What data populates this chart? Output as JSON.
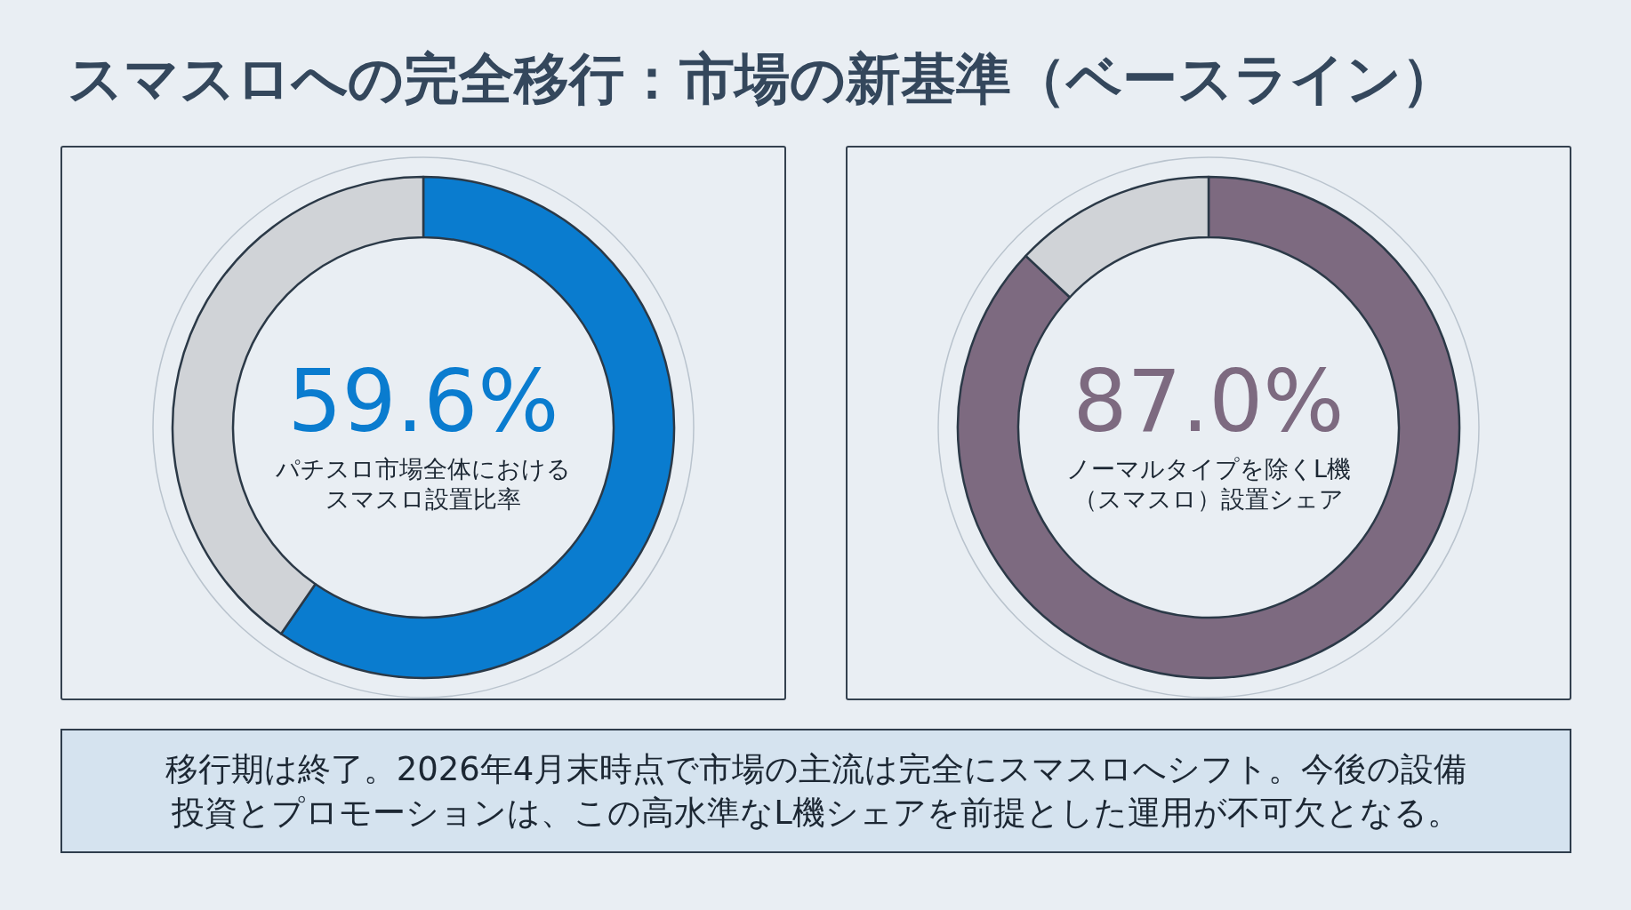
{
  "chart_data": [
    {
      "type": "other",
      "title": "スマスロへの完全移行：市場の新基準（ベースライン）"
    },
    {
      "type": "donut",
      "categories": [
        null,
        null
      ],
      "values": [
        59.6,
        40.4
      ],
      "colors": [
        "#0a7ccf",
        "#d0d3d7"
      ],
      "value_labels": [
        "59.6%",
        null
      ],
      "title": "パチスロ市場全体におけるスマスロ設置比率"
    },
    {
      "type": "donut",
      "categories": [
        null,
        null
      ],
      "values": [
        87.0,
        13.0
      ],
      "colors": [
        "#7d6a80",
        "#d0d3d7"
      ],
      "value_labels": [
        "87.0%",
        null
      ],
      "title": "ノーマルタイプを除くL機（スマスロ）設置シェア"
    },
    {
      "type": "other",
      "annotations": [
        "移行期は終了。2026年4月末時点で市場の主流は完全にスマスロへシフト。今後の設備投資とプロモーションは、この高水準なL機シェアを前提とした運用が不可欠となる。"
      ]
    }
  ]
}
